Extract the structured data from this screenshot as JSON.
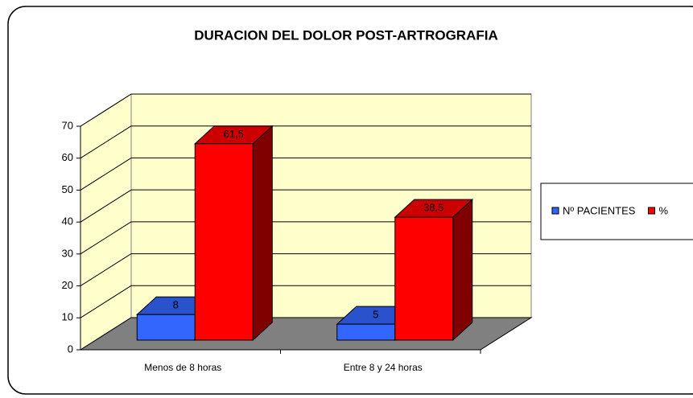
{
  "chart_data": {
    "type": "bar3d",
    "title": "DURACION DEL DOLOR POST-ARTROGRAFIA",
    "categories": [
      "Menos de 8 horas",
      "Entre 8 y 24 horas"
    ],
    "series": [
      {
        "name": "Nº PACIENTES",
        "color": "#3366ff",
        "values": [
          8,
          5
        ]
      },
      {
        "name": "%",
        "color": "#ff0000",
        "values": [
          61.5,
          38.5
        ],
        "value_labels": [
          "61,5",
          "38,5"
        ]
      }
    ],
    "ylim": [
      0,
      70
    ],
    "yticks": [
      0,
      10,
      20,
      30,
      40,
      50,
      60,
      70
    ],
    "grid": true,
    "legend": "right"
  }
}
